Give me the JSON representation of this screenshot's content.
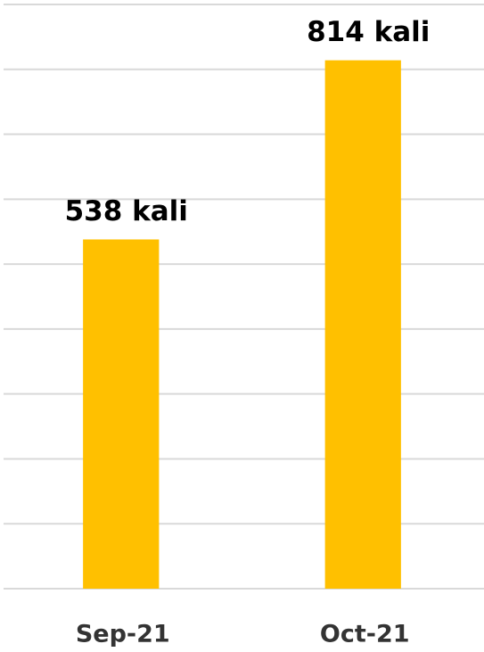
{
  "chart_data": {
    "type": "bar",
    "categories": [
      "Sep-21",
      "Oct-21"
    ],
    "values": [
      538,
      814
    ],
    "value_labels": [
      "538 kali",
      "814 kali"
    ],
    "color": "#ffc000",
    "ylim": [
      0,
      900
    ],
    "yticks": [
      0,
      100,
      200,
      300,
      400,
      500,
      600,
      700,
      800,
      900
    ],
    "grid": true
  }
}
